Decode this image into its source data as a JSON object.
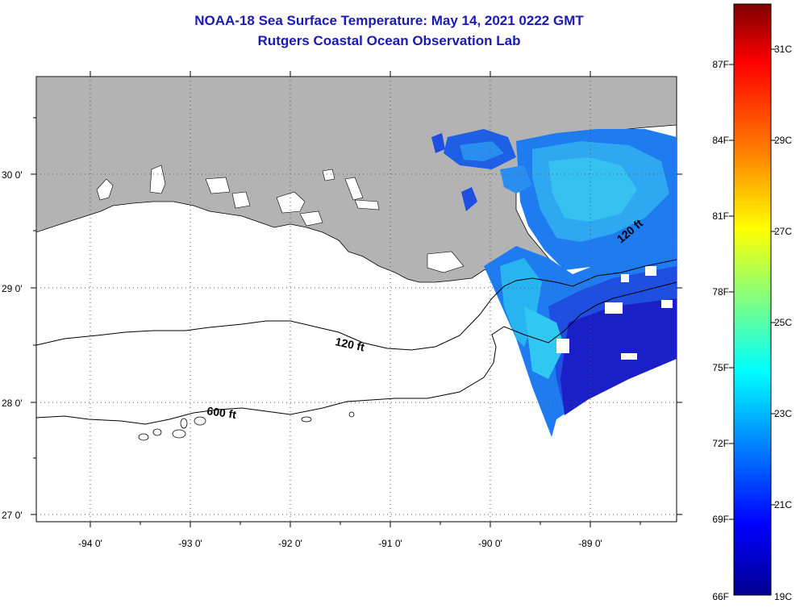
{
  "header": {
    "title": "NOAA-18 Sea Surface Temperature:  May 14, 2021 0222 GMT",
    "subtitle": "Rutgers Coastal Ocean Observation Lab"
  },
  "map": {
    "lon_labels": [
      "-94 0'",
      "-93 0'",
      "-92 0'",
      "-91 0'",
      "-90 0'",
      "-89 0'"
    ],
    "lat_labels": [
      "30 0'",
      "29 0'",
      "28 0'",
      "27 0'"
    ],
    "contour_labels": [
      "120 ft",
      "600 ft",
      "120 ft"
    ],
    "colors": {
      "land": "#b3b3b3",
      "ocean_no_data": "#ffffff",
      "grid": "#555555"
    }
  },
  "colorbar": {
    "fahrenheit_labels": [
      "87F",
      "84F",
      "81F",
      "78F",
      "75F",
      "72F",
      "69F",
      "66F"
    ],
    "celsius_labels": [
      "31C",
      "29C",
      "27C",
      "25C",
      "23C",
      "21C",
      "19C"
    ],
    "gradient": [
      "#7f0000",
      "#ff0000",
      "#ff8000",
      "#ffff00",
      "#80ff80",
      "#00ffff",
      "#0080ff",
      "#0000ff",
      "#00008f"
    ]
  }
}
